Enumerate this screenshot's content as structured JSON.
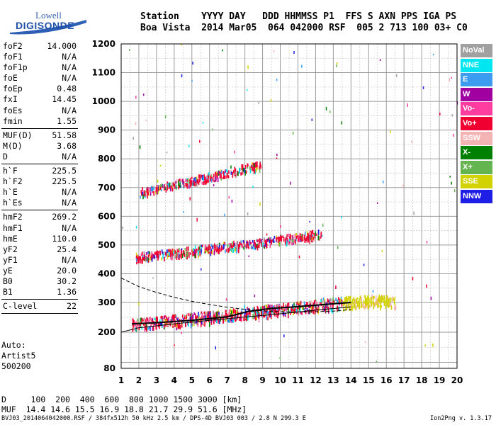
{
  "logo": {
    "line1": "Lowell",
    "line2": "DIGISONDE"
  },
  "header": {
    "labels": "Station    YYYY DAY   DDD HHMMSS P1  FFS S AXN PPS IGA PS",
    "values": "Boa Vista  2014 Mar05  064 042000 RSF  005 2 713 100 03+ C0"
  },
  "params": {
    "group1": [
      {
        "name": "foF2",
        "value": "14.000"
      },
      {
        "name": "foF1",
        "value": "N/A"
      },
      {
        "name": "foF1p",
        "value": "N/A"
      },
      {
        "name": "foE",
        "value": "N/A"
      },
      {
        "name": "foEp",
        "value": "0.48"
      },
      {
        "name": "fxI",
        "value": "14.45"
      },
      {
        "name": "foEs",
        "value": "N/A"
      },
      {
        "name": "fmin",
        "value": "1.55"
      }
    ],
    "group2": [
      {
        "name": "MUF(D)",
        "value": "51.58"
      },
      {
        "name": "M(D)",
        "value": "3.68"
      },
      {
        "name": "D",
        "value": "N/A"
      }
    ],
    "group3": [
      {
        "name": "h`F",
        "value": "225.5"
      },
      {
        "name": "h`F2",
        "value": "225.5"
      },
      {
        "name": "h`E",
        "value": "N/A"
      },
      {
        "name": "h`Es",
        "value": "N/A"
      }
    ],
    "group4": [
      {
        "name": "hmF2",
        "value": "269.2"
      },
      {
        "name": "hmF1",
        "value": "N/A"
      },
      {
        "name": "hmE",
        "value": "110.0"
      },
      {
        "name": "yF2",
        "value": "25.4"
      },
      {
        "name": "yF1",
        "value": "N/A"
      },
      {
        "name": "yE",
        "value": "20.0"
      },
      {
        "name": "B0",
        "value": "30.2"
      },
      {
        "name": "B1",
        "value": "1.36"
      }
    ],
    "group5": [
      {
        "name": "C-level",
        "value": "22"
      }
    ]
  },
  "lowleft": {
    "line1": "Auto:",
    "line2": "Artist5",
    "line3": "500200"
  },
  "bottom": {
    "d_row": "D     100  200  400  600  800 1000 1500 3000 [km]",
    "muf_row": "MUF  14.4 14.6 15.5 16.9 18.8 21.7 29.9 51.6 [MHz]"
  },
  "footer": {
    "text": "BVJ03_2014064042000.RSF / 384fx512h 50 kHz 2.5 km / DPS-4D BVJ03 003 / 2.8 N 299.3 E",
    "version": "Ion2Png v. 1.3.17"
  },
  "legend": [
    {
      "label": "NoVal",
      "color": "#a0a0a0"
    },
    {
      "label": "NNE",
      "color": "#00e6f0"
    },
    {
      "label": "E",
      "color": "#3c9cf0"
    },
    {
      "label": "W",
      "color": "#a000a0"
    },
    {
      "label": "Vo-",
      "color": "#ff3ca0"
    },
    {
      "label": "Vo+",
      "color": "#f00030"
    },
    {
      "label": "SSW",
      "color": "#f5b4b4"
    },
    {
      "label": "X-",
      "color": "#008000"
    },
    {
      "label": "X+",
      "color": "#64b450"
    },
    {
      "label": "SSE",
      "color": "#d2d200"
    },
    {
      "label": "NNW",
      "color": "#1e1ee6"
    }
  ],
  "chart_data": {
    "type": "scatter",
    "x_ticks": [
      1,
      2,
      3,
      4,
      5,
      6,
      7,
      8,
      9,
      10,
      11,
      12,
      13,
      14,
      15,
      16,
      17,
      18,
      19,
      20
    ],
    "y_ticks": [
      80,
      200,
      300,
      400,
      500,
      600,
      700,
      800,
      900,
      1000,
      1100,
      1200
    ],
    "xlim": [
      1,
      20
    ],
    "ylim": [
      80,
      1200
    ],
    "grid": true,
    "traces": [
      {
        "name": "F2 O-trace",
        "x": [
          1.6,
          3,
          5,
          7,
          9,
          11,
          12.5,
          13.5,
          14.5,
          15.5,
          16.5
        ],
        "y": [
          232,
          238,
          250,
          262,
          275,
          288,
          298,
          304,
          310,
          312,
          306
        ]
      },
      {
        "name": "F2 multihop 2",
        "x": [
          1.8,
          3,
          5,
          7,
          9,
          11,
          12.3
        ],
        "y": [
          462,
          470,
          485,
          500,
          515,
          532,
          545
        ]
      },
      {
        "name": "F2 multihop 3",
        "x": [
          2.1,
          3,
          4,
          5,
          6,
          7,
          8,
          8.9
        ],
        "y": [
          690,
          700,
          715,
          728,
          742,
          756,
          772,
          782
        ]
      }
    ],
    "profile_curves": [
      {
        "name": "virtual height model (solid)",
        "x": [
          1,
          2,
          4,
          6,
          8,
          10,
          12,
          14
        ],
        "y": [
          200,
          215,
          228,
          240,
          251,
          262,
          274,
          285
        ]
      },
      {
        "name": "virtual height model (bold)",
        "x": [
          1.6,
          3,
          5,
          7,
          8.2,
          9.5,
          11,
          12.5,
          14
        ],
        "y": [
          228,
          232,
          240,
          252,
          270,
          280,
          286,
          293,
          300
        ]
      },
      {
        "name": "real height profile (dashed)",
        "x": [
          1,
          2,
          3,
          4,
          5,
          6,
          7,
          8,
          9,
          10,
          11,
          12,
          13,
          14
        ],
        "y": [
          385,
          355,
          335,
          318,
          304,
          293,
          284,
          277,
          272,
          269,
          268,
          269,
          271,
          276
        ]
      }
    ]
  }
}
